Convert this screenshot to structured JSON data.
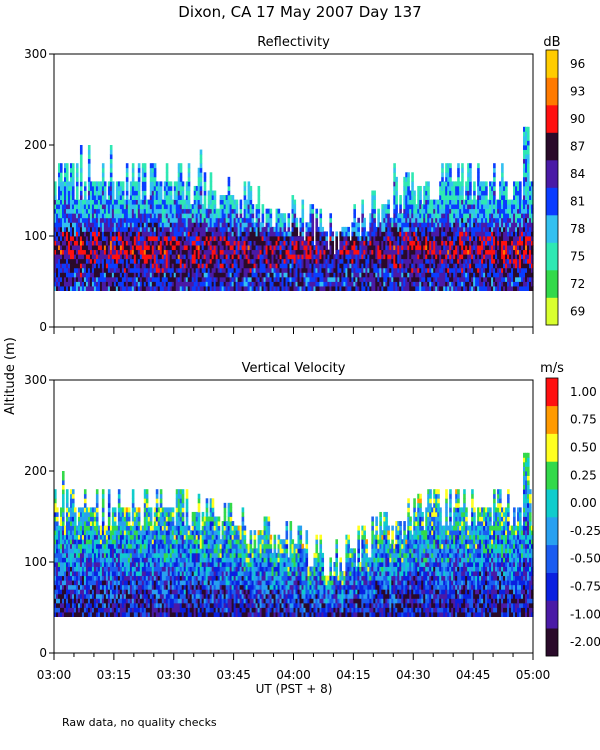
{
  "figure": {
    "title": "Dixon, CA 17 May 2007  Day 137",
    "ylabel": "Altitude (m)",
    "xlabel": "UT  (PST + 8)",
    "footnote": "Raw data, no quality checks"
  },
  "chart_data": [
    {
      "type": "heatmap",
      "title": "Reflectivity",
      "units": "dB",
      "xlim": [
        "03:00",
        "05:00"
      ],
      "ylim": [
        0,
        300
      ],
      "xticks": [
        "03:00",
        "03:15",
        "03:30",
        "03:45",
        "04:00",
        "04:15",
        "04:30",
        "04:45",
        "05:00"
      ],
      "yticks": [
        0,
        100,
        200,
        300
      ],
      "colorbar": {
        "ticks": [
          "69",
          "72",
          "75",
          "78",
          "81",
          "84",
          "87",
          "90",
          "93",
          "96"
        ],
        "colors": [
          "#d9ff2e",
          "#33d94a",
          "#2ee8b3",
          "#33c0f0",
          "#0a3cff",
          "#4a1aa6",
          "#2a0a2a",
          "#ff1010",
          "#ff7a00",
          "#ffcc00"
        ]
      },
      "echo_bottom_m": 40,
      "echo_top_profile": [
        {
          "t": "03:00",
          "top_m": 160
        },
        {
          "t": "03:30",
          "top_m": 160
        },
        {
          "t": "03:45",
          "top_m": 140
        },
        {
          "t": "04:00",
          "top_m": 120
        },
        {
          "t": "04:10",
          "top_m": 100
        },
        {
          "t": "04:25",
          "top_m": 140
        },
        {
          "t": "04:35",
          "top_m": 160
        },
        {
          "t": "05:00",
          "top_m": 160
        }
      ],
      "max_echo_top": {
        "t": "04:58",
        "top_m": 220
      }
    },
    {
      "type": "heatmap",
      "title": "Vertical Velocity",
      "units": "m/s",
      "xlim": [
        "03:00",
        "05:00"
      ],
      "ylim": [
        0,
        300
      ],
      "xticks": [
        "03:00",
        "03:15",
        "03:30",
        "03:45",
        "04:00",
        "04:15",
        "04:30",
        "04:45",
        "05:00"
      ],
      "yticks": [
        0,
        100,
        200,
        300
      ],
      "colorbar": {
        "ticks": [
          "-2.00",
          "-1.00",
          "-0.75",
          "-0.50",
          "-0.25",
          "0.00",
          "0.25",
          "0.50",
          "0.75",
          "1.00"
        ],
        "colors": [
          "#2a0a2a",
          "#4a1aa6",
          "#0a20e0",
          "#1a5cf0",
          "#28a0f0",
          "#10cccc",
          "#33d94a",
          "#ffff20",
          "#ff9a00",
          "#ff1010"
        ]
      },
      "echo_bottom_m": 40,
      "echo_top_profile": [
        {
          "t": "03:00",
          "top_m": 160
        },
        {
          "t": "03:30",
          "top_m": 160
        },
        {
          "t": "03:45",
          "top_m": 140
        },
        {
          "t": "04:00",
          "top_m": 120
        },
        {
          "t": "04:10",
          "top_m": 100
        },
        {
          "t": "04:25",
          "top_m": 140
        },
        {
          "t": "04:35",
          "top_m": 160
        },
        {
          "t": "05:00",
          "top_m": 160
        }
      ],
      "max_echo_top": {
        "t": "04:58",
        "top_m": 220
      }
    }
  ]
}
